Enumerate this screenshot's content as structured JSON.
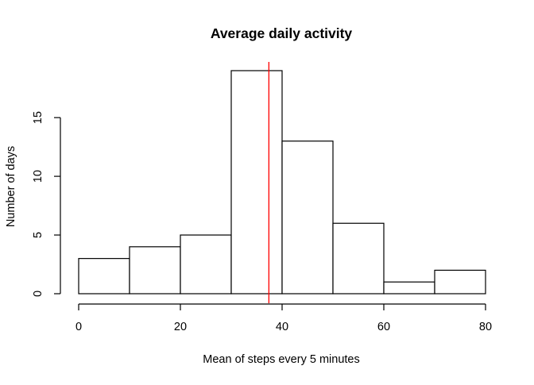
{
  "chart_data": {
    "type": "bar",
    "title": "Average daily activity",
    "xlabel": "Mean of steps every 5 minutes",
    "ylabel": "Number of days",
    "bins": [
      {
        "from": 0,
        "to": 10,
        "count": 3
      },
      {
        "from": 10,
        "to": 20,
        "count": 4
      },
      {
        "from": 20,
        "to": 30,
        "count": 5
      },
      {
        "from": 30,
        "to": 40,
        "count": 19
      },
      {
        "from": 40,
        "to": 50,
        "count": 13
      },
      {
        "from": 50,
        "to": 60,
        "count": 6
      },
      {
        "from": 60,
        "to": 70,
        "count": 1
      },
      {
        "from": 70,
        "to": 80,
        "count": 2
      }
    ],
    "xlim": [
      0,
      80
    ],
    "ylim": [
      0,
      19
    ],
    "xticks": [
      0,
      20,
      40,
      60,
      80
    ],
    "yticks": [
      0,
      5,
      10,
      15
    ],
    "reference_line": {
      "x": 37.4,
      "color": "#ff0000"
    },
    "bar_fill": "#ffffff",
    "bar_stroke": "#000000",
    "grid": false
  }
}
